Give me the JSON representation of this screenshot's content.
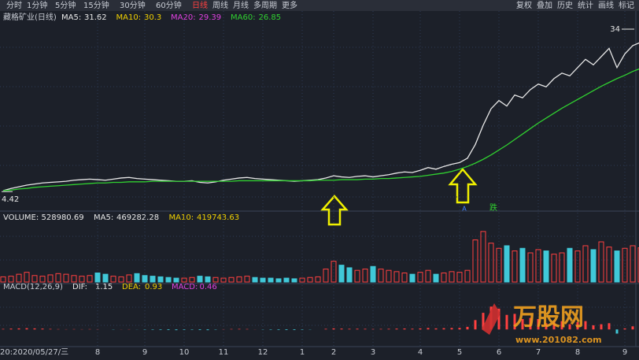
{
  "toolbar": {
    "left": [
      "分时",
      "1分钟",
      "5分钟",
      "15分钟",
      "30分钟",
      "60分钟",
      "日线",
      "周线",
      "月线",
      "多周期",
      "更多"
    ],
    "active": "日线",
    "right": [
      "复权",
      "叠加",
      "历史",
      "统计",
      "画线",
      "标记"
    ]
  },
  "chart_data": {
    "type": "stock",
    "title": "藏格矿业(日线)",
    "categories": [
      "20:2020/05/27/三",
      null,
      null,
      null,
      null,
      null,
      null,
      null,
      null,
      null,
      null,
      null,
      "8",
      null,
      null,
      null,
      null,
      null,
      "9",
      null,
      null,
      null,
      null,
      "10",
      null,
      null,
      null,
      null,
      "11",
      null,
      null,
      null,
      null,
      "12",
      null,
      null,
      null,
      null,
      "1",
      null,
      null,
      null,
      "2",
      null,
      null,
      null,
      null,
      "3",
      null,
      null,
      null,
      null,
      null,
      "4",
      null,
      null,
      null,
      null,
      "5",
      null,
      null,
      null,
      null,
      "6",
      null,
      null,
      null,
      null,
      "7",
      null,
      null,
      null,
      null,
      "8",
      null,
      null,
      null,
      null,
      null,
      "9",
      null
    ],
    "price": {
      "legend": [
        {
          "label": "MA5:",
          "value": 31.62,
          "color": "#e8e8e8"
        },
        {
          "label": "MA10:",
          "value": 30.3,
          "color": "#f0d000"
        },
        {
          "label": "MA20:",
          "value": 29.39,
          "color": "#e040e0"
        },
        {
          "label": "MA60:",
          "value": 26.85,
          "color": "#30d030"
        }
      ],
      "ylim": [
        1.3,
        37.3
      ],
      "high_label": 34.0,
      "low_label": 4.42,
      "series": [
        {
          "name": "收盘",
          "color": "#e8e8e8",
          "values": [
            4.6,
            5.0,
            5.3,
            5.6,
            5.8,
            6.0,
            6.1,
            6.2,
            6.3,
            6.5,
            6.6,
            6.7,
            6.6,
            6.5,
            6.7,
            6.9,
            7.0,
            6.8,
            6.7,
            6.6,
            6.5,
            6.4,
            6.3,
            6.3,
            6.4,
            6.1,
            6.0,
            6.2,
            6.5,
            6.7,
            6.9,
            7.0,
            6.8,
            6.7,
            6.6,
            6.5,
            6.4,
            6.3,
            6.4,
            6.5,
            6.6,
            6.9,
            7.3,
            7.1,
            7.0,
            7.2,
            7.3,
            7.1,
            7.3,
            7.5,
            7.8,
            8.0,
            7.9,
            8.3,
            8.8,
            8.5,
            9.0,
            9.4,
            9.7,
            10.5,
            13.0,
            16.5,
            19.5,
            21.0,
            20.0,
            22.0,
            21.5,
            23.0,
            24.0,
            23.5,
            25.0,
            26.0,
            25.5,
            27.0,
            28.5,
            27.5,
            29.0,
            30.5,
            27.0,
            29.5,
            31.0,
            31.6
          ]
        },
        {
          "name": "MA60",
          "color": "#30d030",
          "values": [
            4.6,
            4.7,
            4.9,
            5.0,
            5.2,
            5.3,
            5.4,
            5.5,
            5.6,
            5.7,
            5.8,
            5.9,
            6.0,
            6.0,
            6.1,
            6.1,
            6.2,
            6.2,
            6.2,
            6.3,
            6.3,
            6.3,
            6.3,
            6.3,
            6.3,
            6.3,
            6.3,
            6.3,
            6.3,
            6.3,
            6.4,
            6.4,
            6.4,
            6.4,
            6.4,
            6.4,
            6.4,
            6.4,
            6.4,
            6.4,
            6.5,
            6.5,
            6.5,
            6.6,
            6.6,
            6.6,
            6.7,
            6.7,
            6.8,
            6.8,
            6.9,
            7.0,
            7.1,
            7.2,
            7.4,
            7.6,
            7.8,
            8.1,
            8.5,
            9.0,
            9.6,
            10.3,
            11.1,
            12.0,
            12.9,
            13.9,
            14.9,
            15.9,
            16.9,
            17.8,
            18.7,
            19.6,
            20.4,
            21.2,
            22.0,
            22.8,
            23.6,
            24.3,
            25.0,
            25.6,
            26.3,
            26.85
          ]
        }
      ],
      "markers": [
        "A",
        "跌"
      ]
    },
    "volume": {
      "legend": [
        {
          "label": "VOLUME:",
          "value": 528980.69,
          "color": "#e8e8e8"
        },
        {
          "label": "MA5:",
          "value": 469282.28,
          "color": "#e8e8e8"
        },
        {
          "label": "MA10:",
          "value": 419743.63,
          "color": "#f0d000"
        }
      ],
      "ylim": [
        0,
        900000
      ],
      "values": [
        80000,
        90000,
        120000,
        150000,
        100000,
        90000,
        110000,
        130000,
        120000,
        100000,
        90000,
        100000,
        140000,
        120000,
        90000,
        80000,
        110000,
        130000,
        100000,
        90000,
        80000,
        70000,
        60000,
        60000,
        70000,
        90000,
        80000,
        70000,
        60000,
        70000,
        80000,
        90000,
        70000,
        60000,
        60000,
        50000,
        60000,
        50000,
        60000,
        70000,
        80000,
        200000,
        320000,
        260000,
        220000,
        180000,
        200000,
        240000,
        200000,
        180000,
        160000,
        140000,
        120000,
        150000,
        180000,
        120000,
        140000,
        160000,
        150000,
        180000,
        650000,
        780000,
        600000,
        520000,
        560000,
        480000,
        520000,
        450000,
        500000,
        480000,
        430000,
        450000,
        520000,
        480000,
        560000,
        500000,
        620000,
        540000,
        480000,
        520000,
        560000,
        528980
      ]
    },
    "macd": {
      "title": "MACD(12,26,9)",
      "legend": [
        {
          "label": "DIF:",
          "value": 1.15,
          "color": "#e8e8e8"
        },
        {
          "label": "DEA:",
          "value": 0.93,
          "color": "#f0d000"
        },
        {
          "label": "MACD:",
          "value": 0.46,
          "color": "#e040e0"
        }
      ],
      "ylim": [
        -1.5,
        3.5
      ],
      "values": [
        0.05,
        0.08,
        0.1,
        0.12,
        0.1,
        0.08,
        0.05,
        0.03,
        0.02,
        0.03,
        0.02,
        0.03,
        0.02,
        0.0,
        -0.02,
        0.01,
        0.02,
        -0.01,
        -0.03,
        -0.04,
        -0.05,
        -0.06,
        -0.07,
        -0.05,
        -0.04,
        -0.06,
        -0.07,
        -0.03,
        0.02,
        0.04,
        0.05,
        0.04,
        0.01,
        -0.02,
        -0.04,
        -0.05,
        -0.06,
        -0.06,
        -0.04,
        -0.02,
        0.0,
        0.06,
        0.1,
        0.08,
        0.06,
        0.07,
        0.06,
        0.04,
        0.05,
        0.06,
        0.08,
        0.09,
        0.07,
        0.1,
        0.14,
        0.1,
        0.12,
        0.14,
        0.15,
        0.25,
        0.9,
        1.6,
        2.2,
        2.0,
        1.4,
        1.5,
        1.0,
        1.1,
        1.0,
        0.6,
        0.8,
        0.8,
        0.5,
        0.7,
        0.8,
        0.4,
        0.5,
        0.6,
        -0.4,
        0.1,
        0.3,
        0.46
      ]
    }
  },
  "watermark": {
    "name": "万股网",
    "url": "www.201082.com"
  }
}
